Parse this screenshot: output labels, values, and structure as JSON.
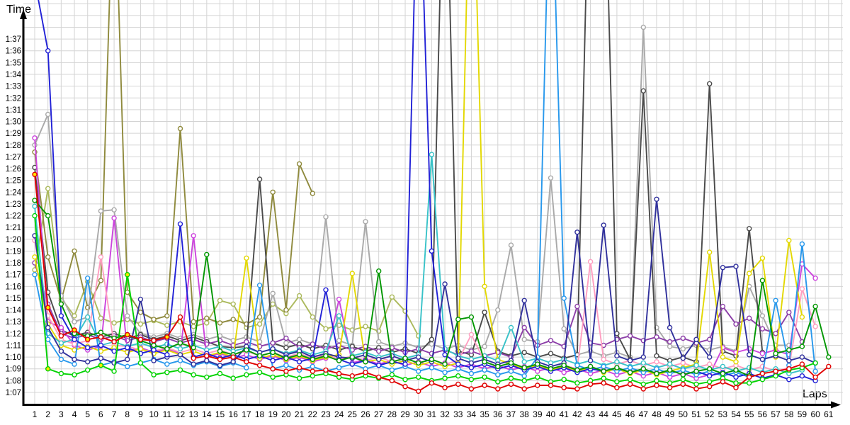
{
  "chart_data": {
    "type": "line",
    "y_label": "Time",
    "x_label": "Laps",
    "legend": false,
    "grid": true,
    "marker": "open-circle",
    "highlight_fill": "#ffe800",
    "grid_color": "#d4d4d4",
    "axis_color": "#000000",
    "y_ticks": [
      "1:07",
      "1:08",
      "1:09",
      "1:10",
      "1:11",
      "1:12",
      "1:13",
      "1:14",
      "1:15",
      "1:16",
      "1:17",
      "1:18",
      "1:19",
      "1:20",
      "1:21",
      "1:22",
      "1:23",
      "1:24",
      "1:25",
      "1:26",
      "1:27",
      "1:28",
      "1:29",
      "1:30",
      "1:31",
      "1:32",
      "1:33",
      "1:34",
      "1:35",
      "1:36",
      "1:37"
    ],
    "y_tick_seconds_start": 67,
    "x": [
      1,
      2,
      3,
      4,
      5,
      6,
      7,
      8,
      9,
      10,
      11,
      12,
      13,
      14,
      15,
      16,
      17,
      18,
      19,
      20,
      21,
      22,
      23,
      24,
      25,
      26,
      27,
      28,
      29,
      30,
      31,
      32,
      33,
      34,
      35,
      36,
      37,
      38,
      39,
      40,
      41,
      42,
      43,
      44,
      45,
      46,
      47,
      48,
      49,
      50,
      51,
      52,
      53,
      54,
      55,
      56,
      57,
      58,
      59,
      60,
      61
    ],
    "series": [
      {
        "name": "yellow-green",
        "color": "#abb95c",
        "values": [
          77.4,
          84.3,
          75.0,
          73.5,
          76.4,
          73.3,
          72.9,
          73.2,
          72.8,
          73.1,
          72.7,
          73.0,
          72.6,
          72.9,
          74.8,
          74.5,
          72.5,
          72.8,
          74.5,
          73.7,
          75.2,
          73.4,
          72.4,
          72.7,
          72.3,
          72.6,
          72.2,
          75.1,
          73.9,
          71.8,
          null,
          null,
          null,
          null,
          null,
          null,
          null,
          null,
          null,
          null,
          null,
          null,
          null,
          null,
          null,
          null,
          null,
          null,
          null,
          null,
          null,
          null,
          null,
          null,
          null,
          null,
          null,
          null,
          null,
          null,
          null
        ]
      },
      {
        "name": "dark-khaki",
        "color": "#8f8a3d",
        "values": [
          87.4,
          78.5,
          74.8,
          79.0,
          74.2,
          76.5,
          113.0,
          75.5,
          73.8,
          73.2,
          73.5,
          89.4,
          73.0,
          73.3,
          72.9,
          73.2,
          72.8,
          73.4,
          84.0,
          74.0,
          86.4,
          83.9,
          null,
          null,
          null,
          null,
          null,
          null,
          null,
          null,
          null,
          null,
          null,
          null,
          null,
          null,
          null,
          null,
          null,
          null,
          null,
          null,
          null,
          null,
          null,
          null,
          null,
          null,
          null,
          null,
          null,
          null,
          null,
          null,
          null,
          null,
          null,
          null,
          null,
          null,
          null
        ]
      },
      {
        "name": "silver",
        "color": "#a9a9a9",
        "values": [
          88.0,
          90.6,
          75.2,
          73.0,
          73.4,
          82.4,
          82.5,
          73.5,
          72.0,
          71.7,
          72.0,
          71.6,
          71.9,
          71.5,
          71.8,
          71.4,
          71.7,
          71.3,
          75.4,
          71.2,
          71.5,
          71.1,
          81.9,
          71.4,
          71.0,
          81.5,
          71.3,
          70.9,
          71.2,
          70.8,
          71.1,
          70.7,
          71.0,
          70.6,
          70.9,
          74.0,
          79.5,
          71.5,
          71.3,
          85.2,
          72.4,
          70.2,
          70.5,
          70.1,
          70.4,
          70.0,
          98.0,
          72.5,
          70.9,
          70.7,
          71.0,
          70.6,
          70.9,
          70.5,
          76.0,
          73.5,
          71.0,
          71.0,
          null,
          null,
          null
        ]
      },
      {
        "name": "dark-gray",
        "color": "#4a4a4a",
        "values": [
          86.1,
          75.5,
          72.3,
          71.8,
          72.1,
          71.7,
          72.0,
          71.6,
          71.9,
          71.5,
          71.8,
          71.4,
          71.7,
          71.3,
          70.9,
          70.8,
          70.9,
          85.1,
          71.2,
          70.8,
          71.1,
          70.7,
          71.0,
          70.6,
          70.9,
          70.5,
          70.8,
          70.4,
          70.7,
          70.3,
          71.5,
          118.0,
          70.5,
          70.2,
          73.8,
          70.5,
          70.1,
          70.4,
          70.0,
          70.3,
          69.9,
          70.2,
          117.0,
          117.0,
          72.0,
          69.8,
          92.6,
          70.1,
          69.7,
          70.0,
          69.6,
          93.2,
          70.5,
          70.1,
          80.9,
          70.4,
          null,
          null,
          null,
          null,
          null
        ]
      },
      {
        "name": "purple",
        "color": "#8c3fa8",
        "values": [
          78.0,
          74.5,
          72.0,
          71.6,
          71.9,
          71.5,
          71.8,
          71.4,
          71.7,
          71.3,
          71.6,
          71.2,
          71.5,
          71.1,
          71.4,
          71.0,
          71.3,
          70.9,
          71.2,
          71.6,
          70.8,
          71.1,
          70.7,
          71.0,
          70.6,
          70.9,
          70.5,
          70.8,
          70.4,
          70.7,
          70.3,
          70.6,
          70.2,
          70.5,
          70.1,
          70.4,
          70.0,
          72.5,
          71.0,
          71.4,
          70.9,
          74.3,
          71.2,
          71.0,
          71.5,
          71.8,
          71.4,
          71.7,
          71.3,
          71.6,
          71.2,
          71.5,
          74.3,
          72.8,
          73.3,
          72.4,
          72.0,
          73.8,
          71.3,
          null,
          null
        ]
      },
      {
        "name": "magenta",
        "color": "#cc44dd",
        "values": [
          88.6,
          73.0,
          72.5,
          71.0,
          70.6,
          70.9,
          81.8,
          70.5,
          70.8,
          70.4,
          70.7,
          70.3,
          80.3,
          70.0,
          70.3,
          69.9,
          70.2,
          69.8,
          70.1,
          69.7,
          70.0,
          69.6,
          69.9,
          74.9,
          69.5,
          69.8,
          69.4,
          69.7,
          69.3,
          69.6,
          69.2,
          69.5,
          69.1,
          69.4,
          69.0,
          69.3,
          68.9,
          69.2,
          68.8,
          69.1,
          68.7,
          69.0,
          68.6,
          68.9,
          68.5,
          68.8,
          68.4,
          68.7,
          68.3,
          68.6,
          68.2,
          68.5,
          70.8,
          70.4,
          70.7,
          70.3,
          70.6,
          70.2,
          77.9,
          76.7,
          null
        ]
      },
      {
        "name": "pink",
        "color": "#ff9ec0",
        "values": [
          79.9,
          73.5,
          71.5,
          71.1,
          71.4,
          78.5,
          71.0,
          70.9,
          70.6,
          70.5,
          70.8,
          70.4,
          70.7,
          70.3,
          70.6,
          70.2,
          70.5,
          70.1,
          70.4,
          70.0,
          70.3,
          69.9,
          70.2,
          69.8,
          70.1,
          69.7,
          70.0,
          69.6,
          69.9,
          69.5,
          69.8,
          69.4,
          69.7,
          71.9,
          69.6,
          69.2,
          69.5,
          69.1,
          69.4,
          69.0,
          69.3,
          69.0,
          78.1,
          69.8,
          69.4,
          69.7,
          69.3,
          69.6,
          69.2,
          69.5,
          69.1,
          69.4,
          69.0,
          69.3,
          68.9,
          69.2,
          68.8,
          69.1,
          75.8,
          72.6,
          null
        ]
      },
      {
        "name": "yellow",
        "color": "#e3d800",
        "values": [
          78.5,
          72.8,
          71.0,
          70.6,
          70.9,
          70.5,
          70.8,
          70.4,
          70.7,
          70.3,
          70.6,
          70.2,
          70.5,
          70.1,
          70.4,
          70.0,
          78.4,
          69.9,
          70.2,
          69.8,
          70.1,
          69.7,
          70.0,
          70.2,
          77.1,
          69.6,
          69.8,
          69.4,
          69.7,
          69.3,
          69.6,
          69.2,
          69.5,
          118.0,
          76.0,
          69.8,
          69.4,
          69.0,
          69.3,
          68.9,
          69.2,
          68.8,
          69.1,
          68.7,
          69.0,
          68.6,
          68.9,
          68.5,
          68.8,
          69.1,
          69.4,
          78.9,
          70.0,
          69.6,
          77.1,
          78.4,
          70.0,
          79.9,
          73.4,
          null,
          null
        ]
      },
      {
        "name": "cyan",
        "color": "#38c2c8",
        "values": [
          82.8,
          72.0,
          71.2,
          71.5,
          73.4,
          71.0,
          71.3,
          70.9,
          71.2,
          70.8,
          71.1,
          70.7,
          71.0,
          70.6,
          70.9,
          70.5,
          70.8,
          70.4,
          70.7,
          70.3,
          70.6,
          70.2,
          70.5,
          73.5,
          70.1,
          70.4,
          70.0,
          70.3,
          69.9,
          70.2,
          87.2,
          70.7,
          70.1,
          69.8,
          70.1,
          69.7,
          72.5,
          69.6,
          69.9,
          69.5,
          69.8,
          69.4,
          69.7,
          69.3,
          69.6,
          69.2,
          69.5,
          69.1,
          69.4,
          69.0,
          69.3,
          68.9,
          69.2,
          68.8,
          69.1,
          68.7,
          69.0,
          68.6,
          68.9,
          null,
          null
        ]
      },
      {
        "name": "sky-blue",
        "color": "#2898ec",
        "values": [
          77.0,
          71.5,
          69.8,
          69.4,
          76.7,
          69.3,
          69.6,
          69.2,
          69.5,
          69.8,
          69.4,
          69.7,
          69.3,
          69.6,
          69.2,
          69.5,
          69.1,
          76.1,
          69.0,
          69.3,
          68.9,
          69.2,
          68.8,
          69.1,
          69.4,
          69.0,
          69.3,
          68.9,
          69.2,
          68.8,
          69.1,
          68.7,
          69.0,
          68.6,
          68.9,
          68.5,
          68.8,
          68.4,
          70.0,
          115.0,
          75.0,
          69.3,
          68.9,
          69.2,
          68.8,
          69.1,
          68.7,
          69.0,
          68.6,
          68.9,
          68.5,
          68.8,
          68.4,
          68.7,
          68.3,
          68.6,
          74.8,
          69.3,
          79.6,
          68.8,
          null
        ]
      },
      {
        "name": "navy-blue",
        "color": "#30309c",
        "values": [
          80.3,
          72.5,
          70.5,
          69.8,
          69.6,
          69.9,
          69.5,
          69.8,
          74.9,
          69.7,
          70.0,
          70.2,
          69.4,
          69.7,
          69.3,
          69.6,
          70.9,
          70.4,
          70.7,
          70.2,
          70.5,
          70.0,
          70.3,
          70.0,
          69.9,
          70.2,
          69.8,
          70.1,
          69.7,
          70.0,
          69.6,
          76.2,
          69.9,
          69.5,
          69.8,
          69.4,
          69.7,
          74.8,
          69.6,
          69.2,
          69.5,
          80.6,
          69.7,
          81.2,
          70.1,
          69.7,
          70.0,
          83.4,
          72.5,
          69.9,
          71.5,
          70.0,
          77.6,
          77.7,
          70.2,
          69.8,
          70.1,
          69.7,
          70.0,
          69.5,
          null
        ]
      },
      {
        "name": "blue",
        "color": "#2121d6",
        "values": [
          102.0,
          96.0,
          73.5,
          71.5,
          70.8,
          71.0,
          70.5,
          70.8,
          70.3,
          70.6,
          70.2,
          81.3,
          70.0,
          70.3,
          69.9,
          70.2,
          69.8,
          70.1,
          69.7,
          70.0,
          69.6,
          69.9,
          75.7,
          69.8,
          69.4,
          69.7,
          69.3,
          69.6,
          69.4,
          115.0,
          79.0,
          70.2,
          69.4,
          69.1,
          69.4,
          69.0,
          69.3,
          68.9,
          69.2,
          68.8,
          69.1,
          68.7,
          69.0,
          68.8,
          69.1,
          68.7,
          69.0,
          68.6,
          68.9,
          68.5,
          68.8,
          68.4,
          68.7,
          68.3,
          68.6,
          68.2,
          68.5,
          68.1,
          68.4,
          68.0,
          null
        ]
      },
      {
        "name": "medium-green",
        "color": "#009600",
        "values": [
          83.3,
          82.0,
          74.5,
          72.0,
          71.8,
          72.1,
          71.6,
          71.9,
          71.4,
          71.0,
          70.7,
          71.2,
          70.8,
          78.7,
          70.5,
          70.2,
          70.6,
          70.1,
          70.4,
          69.9,
          70.2,
          69.8,
          70.1,
          69.7,
          70.0,
          69.6,
          77.3,
          69.6,
          69.9,
          69.5,
          69.8,
          69.4,
          73.2,
          73.4,
          69.6,
          69.2,
          69.5,
          69.1,
          69.4,
          69.0,
          69.3,
          68.9,
          69.2,
          68.8,
          69.1,
          68.7,
          69.0,
          68.6,
          68.9,
          68.5,
          68.8,
          69.0,
          68.6,
          68.9,
          68.4,
          76.5,
          70.3,
          70.6,
          70.9,
          74.3,
          70.0
        ]
      },
      {
        "name": "bright-green",
        "color": "#00d200",
        "highlight_laps": [
          2,
          6,
          8
        ],
        "values": [
          82.0,
          69.0,
          68.6,
          68.5,
          68.9,
          69.3,
          68.8,
          77.0,
          69.5,
          68.5,
          68.7,
          68.9,
          68.5,
          68.3,
          68.6,
          68.2,
          68.5,
          68.7,
          68.3,
          68.5,
          68.2,
          68.4,
          68.6,
          68.3,
          68.1,
          68.4,
          68.2,
          68.5,
          68.1,
          68.3,
          68.0,
          68.2,
          68.4,
          68.1,
          68.3,
          67.9,
          68.2,
          68.0,
          68.3,
          67.9,
          68.1,
          67.8,
          68.0,
          68.2,
          67.9,
          68.1,
          67.7,
          68.0,
          67.8,
          68.1,
          67.7,
          67.9,
          68.2,
          67.8,
          67.8,
          68.1,
          68.4,
          68.9,
          69.1,
          69.5,
          null
        ]
      },
      {
        "name": "red",
        "color": "#e00000",
        "highlight_laps": [
          1,
          2,
          4,
          5,
          8,
          11
        ],
        "values": [
          85.5,
          74.2,
          71.8,
          72.3,
          71.5,
          71.7,
          71.3,
          71.9,
          71.5,
          71.4,
          71.7,
          73.4,
          69.9,
          70.1,
          69.8,
          70.0,
          69.6,
          69.3,
          69.0,
          68.8,
          69.1,
          68.8,
          68.9,
          68.6,
          68.4,
          68.7,
          68.3,
          68.0,
          67.5,
          67.1,
          67.8,
          67.4,
          67.7,
          67.3,
          67.6,
          67.3,
          67.7,
          67.3,
          67.6,
          67.6,
          67.4,
          67.3,
          67.7,
          67.8,
          67.4,
          67.7,
          67.3,
          67.6,
          67.4,
          67.7,
          67.3,
          67.5,
          67.9,
          67.4,
          68.3,
          68.6,
          68.8,
          69.0,
          69.4,
          68.3,
          69.2
        ]
      }
    ]
  }
}
